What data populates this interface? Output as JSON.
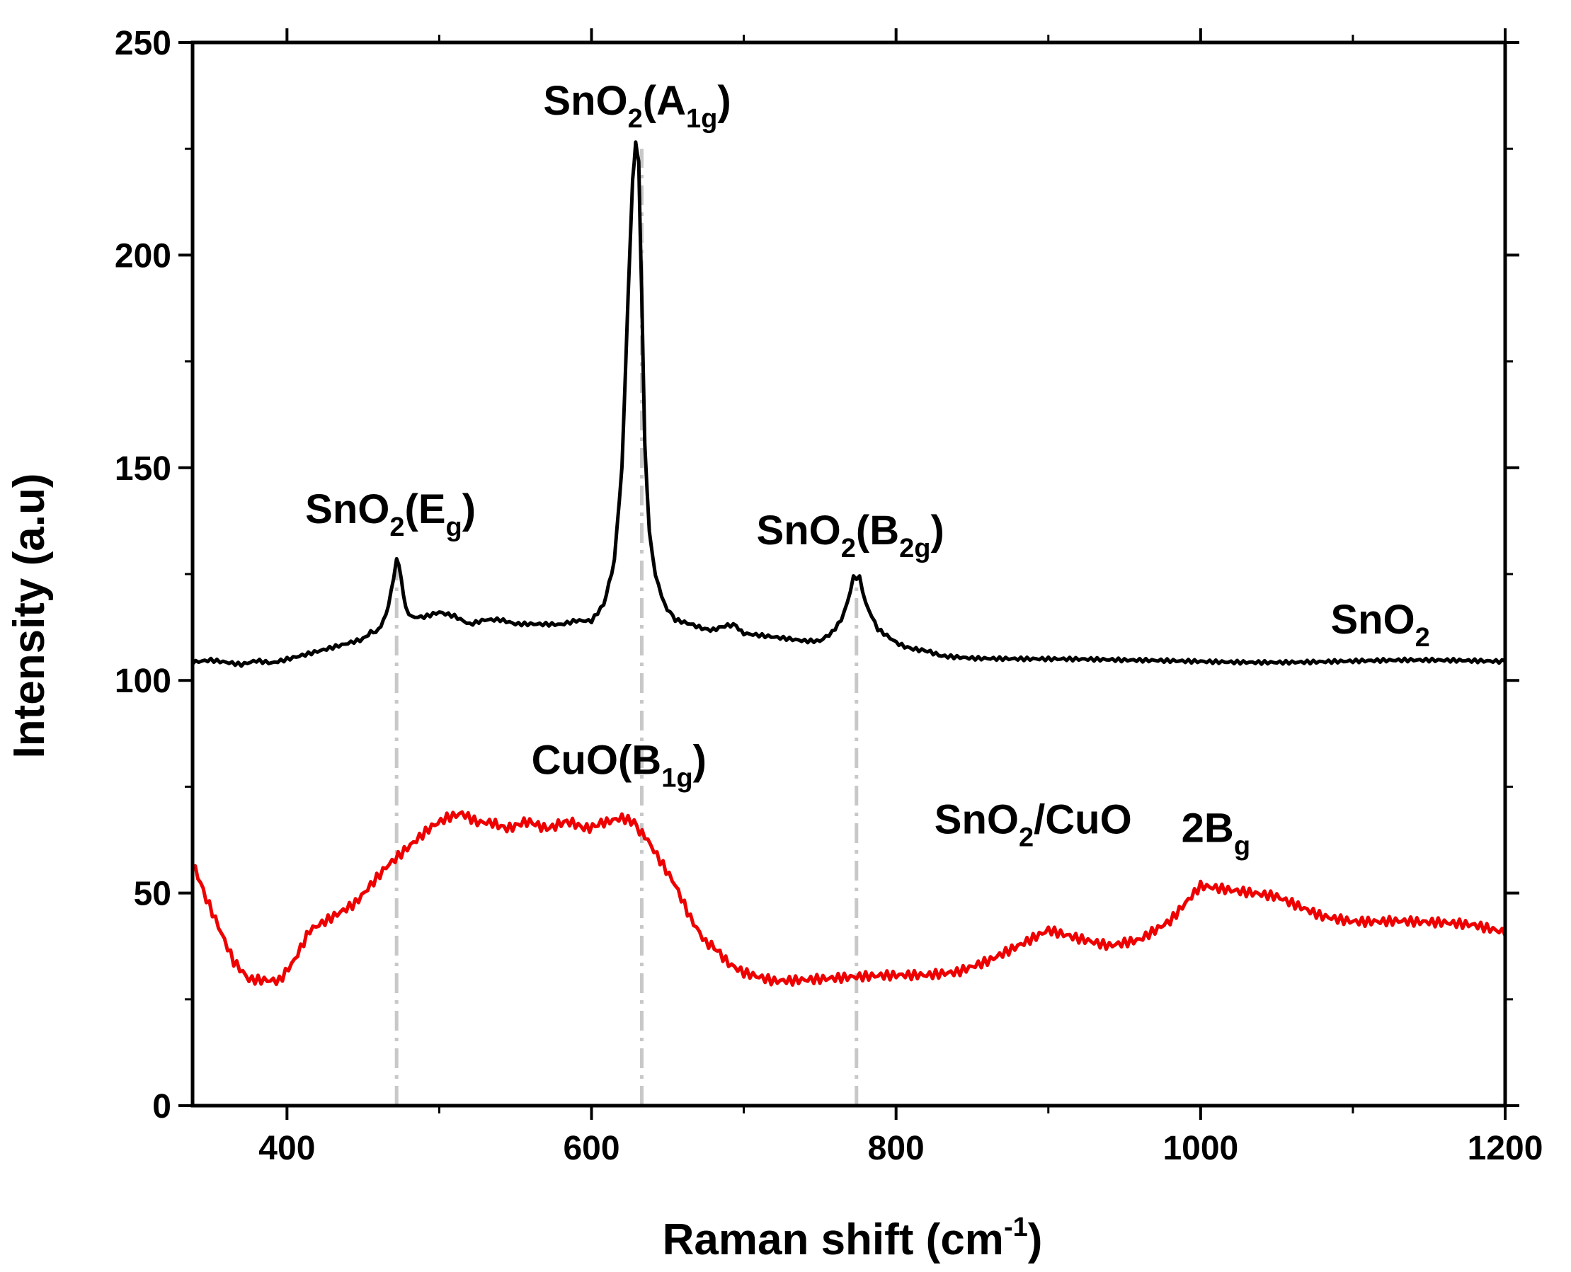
{
  "chart_data": {
    "type": "line",
    "title": "",
    "xlabel": {
      "text": "Raman shift (cm",
      "sup": "-1",
      "close": ")"
    },
    "ylabel": "Intensity (a.u)",
    "xlim": [
      338,
      1200
    ],
    "ylim": [
      0,
      250
    ],
    "xticks": [
      400,
      600,
      800,
      1000,
      1200
    ],
    "yticks": [
      0,
      50,
      100,
      150,
      200,
      250
    ],
    "grid": false,
    "colors": {
      "snO2": "#000000",
      "composite": "#ee0000",
      "refline": "#c8c8c8",
      "axis": "#000000"
    },
    "series": [
      {
        "name": "SnO2",
        "color": "#000000",
        "x": [
          338,
          350,
          360,
          370,
          380,
          390,
          400,
          410,
          420,
          430,
          440,
          450,
          455,
          460,
          465,
          470,
          472,
          475,
          478,
          482,
          490,
          500,
          510,
          520,
          530,
          540,
          550,
          560,
          570,
          580,
          590,
          600,
          608,
          615,
          620,
          624,
          627,
          629,
          631,
          633,
          635,
          638,
          642,
          648,
          655,
          665,
          680,
          695,
          700,
          720,
          740,
          750,
          758,
          764,
          768,
          772,
          776,
          780,
          788,
          800,
          815,
          830,
          850,
          900,
          950,
          1000,
          1050,
          1100,
          1150,
          1200
        ],
        "y": [
          104,
          104.5,
          104,
          103.5,
          104.5,
          104,
          105,
          106,
          107,
          108,
          109,
          110,
          111,
          112,
          115,
          124,
          129,
          124,
          117,
          115,
          115,
          116,
          115,
          113,
          114,
          114,
          113,
          113,
          113,
          113,
          114,
          114,
          118,
          128,
          150,
          190,
          218,
          226,
          222,
          190,
          155,
          135,
          125,
          118,
          114,
          113,
          112,
          113,
          111,
          110,
          109,
          109,
          111,
          114,
          118,
          124,
          124,
          118,
          112,
          109,
          107,
          106,
          105.5,
          105,
          104.5,
          104.5,
          104.5,
          104.5,
          104.5,
          104.5
        ]
      },
      {
        "name": "SnO2/CuO",
        "color": "#ee0000",
        "x": [
          338,
          345,
          355,
          365,
          375,
          385,
          395,
          405,
          415,
          425,
          435,
          445,
          455,
          465,
          475,
          485,
          495,
          505,
          515,
          525,
          535,
          550,
          565,
          580,
          595,
          610,
          620,
          628,
          635,
          645,
          655,
          665,
          675,
          690,
          700,
          720,
          740,
          760,
          780,
          800,
          820,
          840,
          860,
          880,
          900,
          920,
          940,
          960,
          980,
          1000,
          1020,
          1050,
          1080,
          1100,
          1130,
          1160,
          1180,
          1200
        ],
        "y": [
          57,
          50,
          42,
          34,
          30,
          30,
          30,
          35,
          42,
          44,
          46,
          48,
          52,
          56,
          59,
          62,
          65,
          67,
          68,
          66,
          66,
          66,
          66,
          66,
          66,
          66,
          67,
          66,
          64,
          58,
          52,
          44,
          38,
          34,
          32,
          30,
          30,
          30,
          30,
          30,
          30,
          31,
          34,
          38,
          42,
          40,
          38,
          39,
          43,
          51,
          50,
          49,
          45,
          44,
          44,
          43,
          42,
          40
        ]
      }
    ],
    "reference_lines": [
      {
        "x": 472,
        "y_from": 0,
        "y_to": 129
      },
      {
        "x": 633,
        "y_from": 0,
        "y_to": 225
      },
      {
        "x": 774,
        "y_from": 0,
        "y_to": 124
      }
    ],
    "annotations": [
      {
        "id": "eg",
        "main": "SnO",
        "sub1": "2",
        "mid": "(E",
        "sub2": "g",
        "end": ")",
        "x": 468,
        "y": 137
      },
      {
        "id": "a1g",
        "main": "SnO",
        "sub1": "2",
        "mid": "(A",
        "sub2": "1g",
        "end": ")",
        "x": 630,
        "y": 233
      },
      {
        "id": "b2g",
        "main": "SnO",
        "sub1": "2",
        "mid": "(B",
        "sub2": "2g",
        "end": ")",
        "x": 770,
        "y": 132
      },
      {
        "id": "b1g",
        "main": "CuO(B",
        "sub1": "1g",
        "mid": ")",
        "sub2": "",
        "end": "",
        "x": 618,
        "y": 78
      },
      {
        "id": "2bg",
        "main": "2B",
        "sub1": "g",
        "mid": "",
        "sub2": "",
        "end": "",
        "x": 1010,
        "y": 62
      },
      {
        "id": "label-sno2",
        "main": "SnO",
        "sub1": "2",
        "mid": "",
        "sub2": "",
        "end": "",
        "x": 1118,
        "y": 111
      },
      {
        "id": "label-composite",
        "main": "SnO",
        "sub1": "2",
        "mid": "/CuO",
        "sub2": "",
        "end": "",
        "x": 890,
        "y": 64
      }
    ]
  }
}
